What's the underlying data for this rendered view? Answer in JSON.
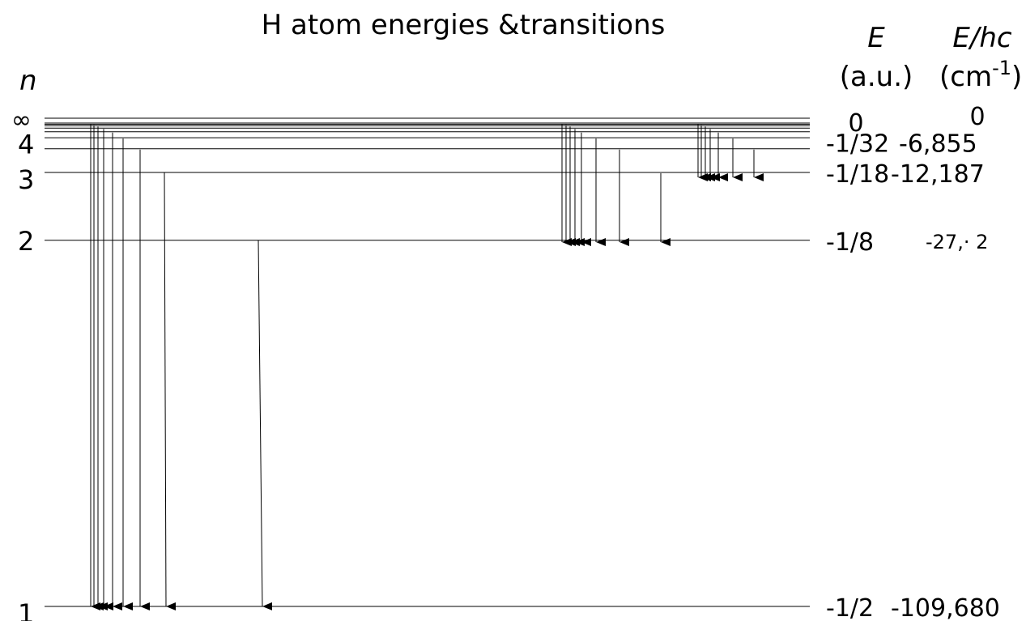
{
  "title": "H atom energies &transitions",
  "headers": {
    "n": "n",
    "E": "E",
    "E_units": "(a.u.)",
    "Ehc": "E/hc",
    "Ehc_units_base": "(cm",
    "Ehc_units_exp": "-1",
    "Ehc_units_close": ")"
  },
  "levels": [
    {
      "n": 1,
      "label": "1",
      "energy_au": "-1/2",
      "energy_cm": "-109,680"
    },
    {
      "n": 2,
      "label": "2",
      "energy_au": "-1/8",
      "energy_cm": "-27,· 2"
    },
    {
      "n": 3,
      "label": "3",
      "energy_au": "-1/18",
      "energy_cm": "-12,187"
    },
    {
      "n": 4,
      "label": "4",
      "energy_au": "-1/32",
      "energy_cm": "-6,855"
    },
    {
      "n": "inf",
      "label": "∞",
      "energy_au": "0",
      "energy_cm": "0"
    }
  ],
  "series": [
    {
      "final_n": 1,
      "initial_n": [
        2,
        3,
        4,
        5,
        6,
        7,
        8,
        9,
        10
      ]
    },
    {
      "final_n": 2,
      "initial_n": [
        3,
        4,
        5,
        6,
        7,
        8,
        9,
        10
      ]
    },
    {
      "final_n": 3,
      "initial_n": [
        4,
        5,
        6,
        7,
        8,
        9,
        10
      ]
    }
  ]
}
